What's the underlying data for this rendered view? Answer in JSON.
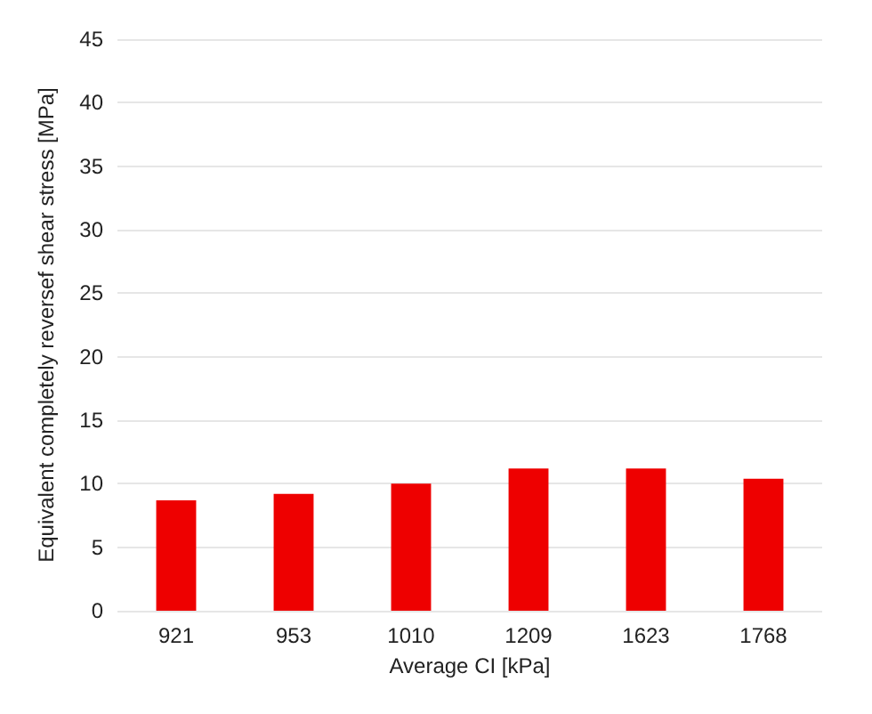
{
  "chart_data": {
    "type": "bar",
    "xlabel": "Average CI [kPa]",
    "ylabel": "Equivalent completely reversef shear stress [MPa]",
    "categories": [
      "921",
      "953",
      "1010",
      "1209",
      "1623",
      "1768"
    ],
    "values": [
      8.7,
      9.2,
      10.0,
      11.2,
      11.2,
      10.4
    ],
    "color": "#ee0000",
    "ylim": [
      0,
      45
    ],
    "yticks": [
      0,
      5,
      10,
      15,
      20,
      25,
      30,
      35,
      40,
      45
    ],
    "grid": "y"
  }
}
